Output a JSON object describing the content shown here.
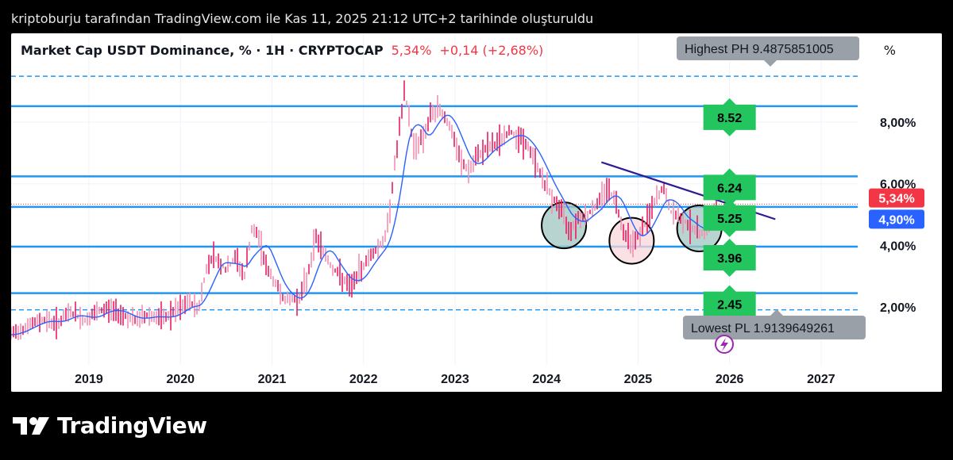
{
  "caption": "kriptoburju tarafından TradingView.com ile Kas 11, 2025 21:12 UTC+2 tarihinde oluşturuldu",
  "header": {
    "symbol": "Market Cap USDT Dominance, % · 1H · CRYPTOCAP",
    "price": "5,34%",
    "change": "+0,14 (+2,68%)",
    "unit": "%"
  },
  "brand": {
    "name": "TradingView",
    "logo_icon": "tradingview-logo-icon"
  },
  "colors": {
    "up": "#f23645",
    "ma": "#2962ff",
    "level": "#2196f3",
    "trend": "#311b92",
    "tag": "#22c55e",
    "bubble": "#9aa0a8"
  },
  "chart_data": {
    "type": "line",
    "x_ticks": [
      "2019",
      "2020",
      "2021",
      "2022",
      "2023",
      "2024",
      "2025",
      "2026",
      "2027"
    ],
    "y_ticks": [
      "2,00%",
      "4,00%",
      "6,00%",
      "8,00%"
    ],
    "y_tick_values": [
      2,
      4,
      6,
      8
    ],
    "ylim": [
      0.2,
      9.7
    ],
    "xlim": [
      2018.15,
      2027.4
    ],
    "current_price_label": "5,34%",
    "current_price": 5.34,
    "ma_label": "4,90%",
    "ma_value": 4.9,
    "levels": [
      {
        "value": 9.49,
        "style": "dashed"
      },
      {
        "value": 8.52,
        "style": "solid",
        "tag": "8.52"
      },
      {
        "value": 6.24,
        "style": "solid",
        "tag": "6.24"
      },
      {
        "value": 5.25,
        "style": "solid",
        "tag": "5.25"
      },
      {
        "value": 3.96,
        "style": "solid",
        "tag": "3.96"
      },
      {
        "value": 2.45,
        "style": "solid",
        "tag": "2.45"
      },
      {
        "value": 1.91,
        "style": "dashed"
      }
    ],
    "highest_label": "Highest PH 9.4875851005",
    "lowest_label": "Lowest PL 1.9139649261",
    "trendline": [
      [
        2024.6,
        6.7
      ],
      [
        2026.5,
        4.85
      ]
    ],
    "circles": [
      {
        "x": 2024.19,
        "y": 4.65,
        "fill": "#9fc5c0"
      },
      {
        "x": 2024.93,
        "y": 4.15,
        "fill": "#f8d7da"
      },
      {
        "x": 2025.67,
        "y": 4.55,
        "fill": "#9fc5c0"
      }
    ],
    "price_path": [
      [
        2018.15,
        1.1
      ],
      [
        2018.3,
        1.35
      ],
      [
        2018.5,
        1.6
      ],
      [
        2018.65,
        1.45
      ],
      [
        2018.8,
        1.85
      ],
      [
        2018.95,
        1.55
      ],
      [
        2019.05,
        1.75
      ],
      [
        2019.2,
        1.95
      ],
      [
        2019.35,
        1.8
      ],
      [
        2019.5,
        1.55
      ],
      [
        2019.65,
        1.75
      ],
      [
        2019.8,
        1.6
      ],
      [
        2019.95,
        1.85
      ],
      [
        2020.1,
        2.15
      ],
      [
        2020.2,
        1.95
      ],
      [
        2020.28,
        3.2
      ],
      [
        2020.35,
        3.7
      ],
      [
        2020.5,
        3.2
      ],
      [
        2020.6,
        3.6
      ],
      [
        2020.7,
        3.0
      ],
      [
        2020.78,
        4.5
      ],
      [
        2020.85,
        4.3
      ],
      [
        2020.95,
        3.2
      ],
      [
        2021.05,
        2.7
      ],
      [
        2021.15,
        2.2
      ],
      [
        2021.3,
        2.3
      ],
      [
        2021.38,
        2.9
      ],
      [
        2021.48,
        4.3
      ],
      [
        2021.55,
        3.9
      ],
      [
        2021.65,
        3.3
      ],
      [
        2021.75,
        3.0
      ],
      [
        2021.85,
        2.6
      ],
      [
        2021.95,
        3.1
      ],
      [
        2022.05,
        3.6
      ],
      [
        2022.15,
        3.9
      ],
      [
        2022.25,
        4.3
      ],
      [
        2022.35,
        6.8
      ],
      [
        2022.45,
        9.0
      ],
      [
        2022.55,
        7.2
      ],
      [
        2022.65,
        7.5
      ],
      [
        2022.75,
        8.3
      ],
      [
        2022.85,
        8.4
      ],
      [
        2022.95,
        7.8
      ],
      [
        2023.05,
        6.8
      ],
      [
        2023.15,
        6.4
      ],
      [
        2023.3,
        7.1
      ],
      [
        2023.45,
        7.3
      ],
      [
        2023.6,
        7.7
      ],
      [
        2023.75,
        7.4
      ],
      [
        2023.85,
        6.9
      ],
      [
        2023.95,
        6.2
      ],
      [
        2024.05,
        5.6
      ],
      [
        2024.15,
        5.2
      ],
      [
        2024.25,
        4.5
      ],
      [
        2024.35,
        4.9
      ],
      [
        2024.45,
        5.0
      ],
      [
        2024.55,
        5.3
      ],
      [
        2024.65,
        5.9
      ],
      [
        2024.75,
        5.5
      ],
      [
        2024.85,
        4.4
      ],
      [
        2024.95,
        4.1
      ],
      [
        2025.05,
        4.5
      ],
      [
        2025.12,
        5.0
      ],
      [
        2025.2,
        5.5
      ],
      [
        2025.28,
        5.9
      ],
      [
        2025.35,
        5.1
      ],
      [
        2025.45,
        4.9
      ],
      [
        2025.55,
        4.7
      ],
      [
        2025.65,
        4.4
      ],
      [
        2025.75,
        4.5
      ],
      [
        2025.82,
        5.0
      ],
      [
        2025.87,
        5.34
      ]
    ]
  }
}
